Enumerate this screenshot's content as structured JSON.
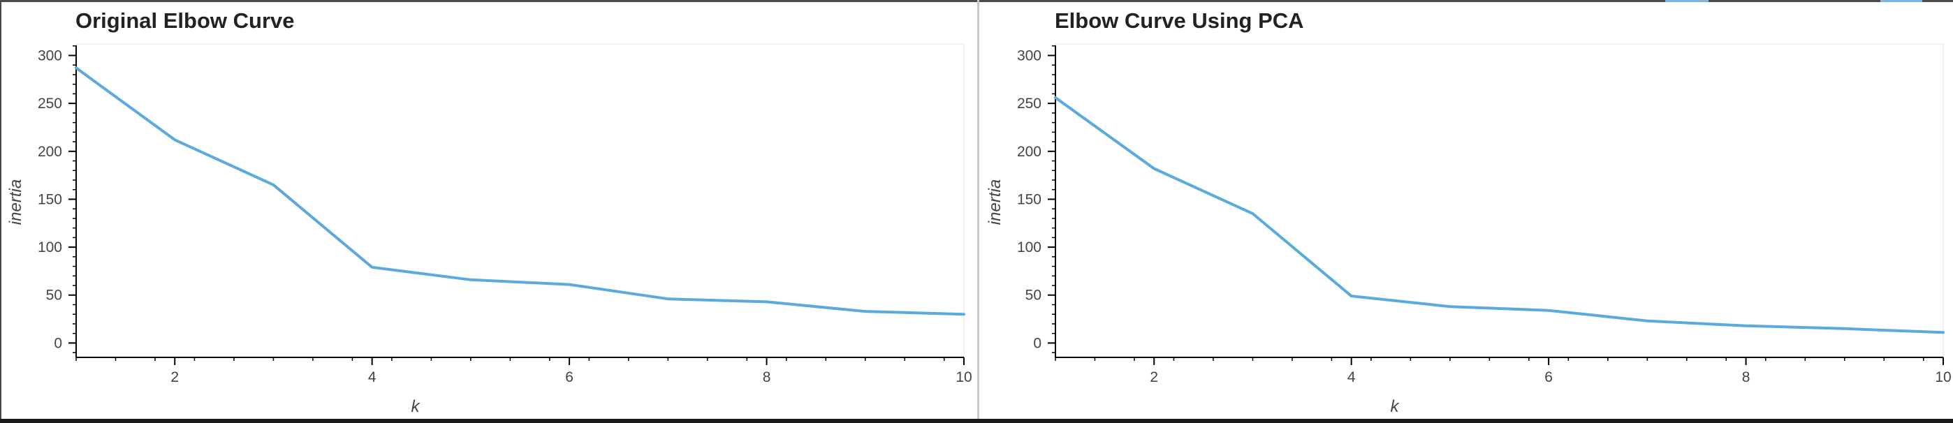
{
  "chart_data": [
    {
      "type": "line",
      "title": "Original Elbow Curve",
      "xlabel": "k",
      "ylabel": "inertia",
      "x": [
        1,
        2,
        3,
        4,
        5,
        6,
        7,
        8,
        9,
        10
      ],
      "series": [
        {
          "values": [
            287,
            212,
            165,
            79,
            66,
            61,
            46,
            43,
            33,
            30
          ],
          "color": "#5aaadc"
        }
      ],
      "xlim": [
        1,
        10
      ],
      "ylim": [
        -15,
        312
      ],
      "xticks": [
        2,
        4,
        6,
        8,
        10
      ],
      "yticks": [
        0,
        50,
        100,
        150,
        200,
        250,
        300
      ],
      "grid": false
    },
    {
      "type": "line",
      "title": "Elbow Curve Using PCA",
      "xlabel": "k",
      "ylabel": "inertia",
      "x": [
        1,
        2,
        3,
        4,
        5,
        6,
        7,
        8,
        9,
        10
      ],
      "series": [
        {
          "values": [
            256,
            182,
            135,
            49,
            38,
            34,
            23,
            18,
            15,
            11
          ],
          "color": "#5aaadc"
        }
      ],
      "xlim": [
        1,
        10
      ],
      "ylim": [
        -15,
        312
      ],
      "xticks": [
        2,
        4,
        6,
        8,
        10
      ],
      "yticks": [
        0,
        50,
        100,
        150,
        200,
        250,
        300
      ],
      "grid": false
    }
  ]
}
